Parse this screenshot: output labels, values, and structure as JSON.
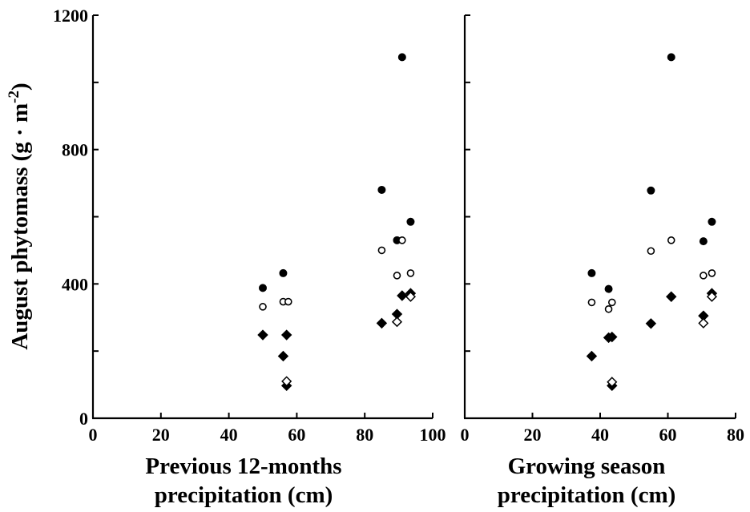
{
  "chart_data": [
    {
      "type": "scatter",
      "ylabel": "August phytomass (g · m",
      "ylabel_sup": "-2",
      "ylabel_close": ")",
      "xlabel_lines": [
        "Previous 12-months",
        "precipitation (cm)"
      ],
      "xlim": [
        0,
        100
      ],
      "ylim": [
        0,
        1200
      ],
      "xticks": [
        "0",
        "20",
        "40",
        "60",
        "80",
        "100"
      ],
      "yticks": [
        "0",
        "400",
        "800",
        "1200"
      ],
      "series": [
        {
          "marker": "filled-circle",
          "points": [
            [
              50,
              388
            ],
            [
              56,
              432
            ],
            [
              85,
              680
            ],
            [
              89.5,
              530
            ],
            [
              91,
              1075
            ],
            [
              93.5,
              585
            ]
          ]
        },
        {
          "marker": "open-circle",
          "points": [
            [
              50,
              332
            ],
            [
              56,
              347
            ],
            [
              57.5,
              347
            ],
            [
              85,
              500
            ],
            [
              89.5,
              425
            ],
            [
              91,
              530
            ],
            [
              93.5,
              432
            ]
          ]
        },
        {
          "marker": "filled-diamond",
          "points": [
            [
              50,
              248
            ],
            [
              56,
              185
            ],
            [
              57,
              248
            ],
            [
              57,
              97
            ],
            [
              85,
              283
            ],
            [
              89.5,
              310
            ],
            [
              91,
              365
            ],
            [
              93.5,
              372
            ]
          ]
        },
        {
          "marker": "open-diamond",
          "points": [
            [
              57,
              110
            ],
            [
              89.5,
              287
            ],
            [
              93.5,
              362
            ]
          ]
        }
      ]
    },
    {
      "type": "scatter",
      "xlabel_lines": [
        "Growing season",
        "precipitation (cm)"
      ],
      "xlim": [
        0,
        80
      ],
      "ylim": [
        0,
        1200
      ],
      "xticks": [
        "0",
        "20",
        "40",
        "60",
        "80"
      ],
      "series": [
        {
          "marker": "filled-circle",
          "points": [
            [
              37.5,
              432
            ],
            [
              42.5,
              385
            ],
            [
              55,
              678
            ],
            [
              61,
              1075
            ],
            [
              70.5,
              527
            ],
            [
              73,
              585
            ]
          ]
        },
        {
          "marker": "open-circle",
          "points": [
            [
              37.5,
              345
            ],
            [
              42.5,
              325
            ],
            [
              43.5,
              345
            ],
            [
              55,
              498
            ],
            [
              61,
              530
            ],
            [
              70.5,
              425
            ],
            [
              73,
              432
            ]
          ]
        },
        {
          "marker": "filled-diamond",
          "points": [
            [
              37.5,
              185
            ],
            [
              42.5,
              240
            ],
            [
              43.5,
              242
            ],
            [
              43.5,
              97
            ],
            [
              55,
              282
            ],
            [
              61,
              362
            ],
            [
              70.5,
              305
            ],
            [
              73,
              372
            ]
          ]
        },
        {
          "marker": "open-diamond",
          "points": [
            [
              43.5,
              108
            ],
            [
              70.5,
              283
            ],
            [
              73,
              362
            ]
          ]
        }
      ]
    }
  ]
}
